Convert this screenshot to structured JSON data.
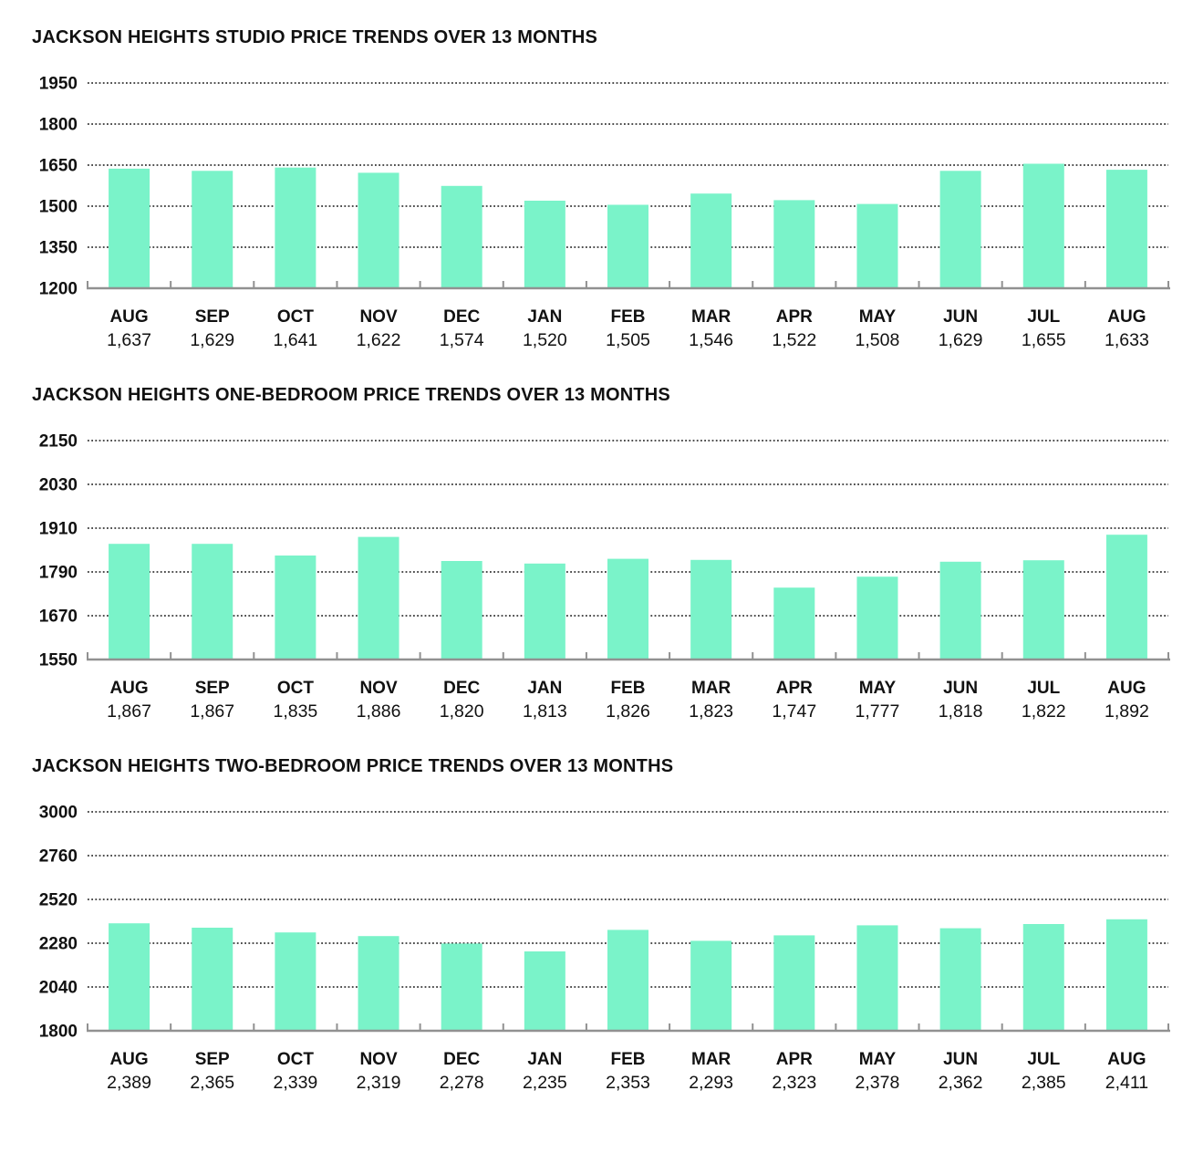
{
  "colors": {
    "bar": "#7af3c9",
    "gridline": "#141414",
    "axis": "#919191",
    "text": "#111111",
    "background": "#ffffff"
  },
  "chart_data": [
    {
      "type": "bar",
      "title": "JACKSON HEIGHTS STUDIO PRICE TRENDS OVER 13 MONTHS",
      "categories": [
        "AUG",
        "SEP",
        "OCT",
        "NOV",
        "DEC",
        "JAN",
        "FEB",
        "MAR",
        "APR",
        "MAY",
        "JUN",
        "JUL",
        "AUG"
      ],
      "values": [
        1637,
        1629,
        1641,
        1622,
        1574,
        1520,
        1505,
        1546,
        1522,
        1508,
        1629,
        1655,
        1633
      ],
      "value_labels": [
        "1,637",
        "1,629",
        "1,641",
        "1,622",
        "1,574",
        "1,520",
        "1,505",
        "1,546",
        "1,522",
        "1,508",
        "1,629",
        "1,655",
        "1,633"
      ],
      "xlabel": "",
      "ylabel": "",
      "ylim": [
        1200,
        1950
      ],
      "yticks": [
        1950,
        1800,
        1650,
        1500,
        1350,
        1200
      ],
      "grid": "dotted-horizontal",
      "legend": "none",
      "bar_color": "#7af3c9"
    },
    {
      "type": "bar",
      "title": "JACKSON HEIGHTS ONE-BEDROOM PRICE TRENDS OVER 13 MONTHS",
      "categories": [
        "AUG",
        "SEP",
        "OCT",
        "NOV",
        "DEC",
        "JAN",
        "FEB",
        "MAR",
        "APR",
        "MAY",
        "JUN",
        "JUL",
        "AUG"
      ],
      "values": [
        1867,
        1867,
        1835,
        1886,
        1820,
        1813,
        1826,
        1823,
        1747,
        1777,
        1818,
        1822,
        1892
      ],
      "value_labels": [
        "1,867",
        "1,867",
        "1,835",
        "1,886",
        "1,820",
        "1,813",
        "1,826",
        "1,823",
        "1,747",
        "1,777",
        "1,818",
        "1,822",
        "1,892"
      ],
      "xlabel": "",
      "ylabel": "",
      "ylim": [
        1550,
        2150
      ],
      "yticks": [
        2150,
        2030,
        1910,
        1790,
        1670,
        1550
      ],
      "grid": "dotted-horizontal",
      "legend": "none",
      "bar_color": "#7af3c9"
    },
    {
      "type": "bar",
      "title": "JACKSON HEIGHTS TWO-BEDROOM PRICE TRENDS OVER 13 MONTHS",
      "categories": [
        "AUG",
        "SEP",
        "OCT",
        "NOV",
        "DEC",
        "JAN",
        "FEB",
        "MAR",
        "APR",
        "MAY",
        "JUN",
        "JUL",
        "AUG"
      ],
      "values": [
        2389,
        2365,
        2339,
        2319,
        2278,
        2235,
        2353,
        2293,
        2323,
        2378,
        2362,
        2385,
        2411
      ],
      "value_labels": [
        "2,389",
        "2,365",
        "2,339",
        "2,319",
        "2,278",
        "2,235",
        "2,353",
        "2,293",
        "2,323",
        "2,378",
        "2,362",
        "2,385",
        "2,411"
      ],
      "xlabel": "",
      "ylabel": "",
      "ylim": [
        1800,
        3000
      ],
      "yticks": [
        3000,
        2760,
        2520,
        2280,
        2040,
        1800
      ],
      "grid": "dotted-horizontal",
      "legend": "none",
      "bar_color": "#7af3c9"
    }
  ]
}
